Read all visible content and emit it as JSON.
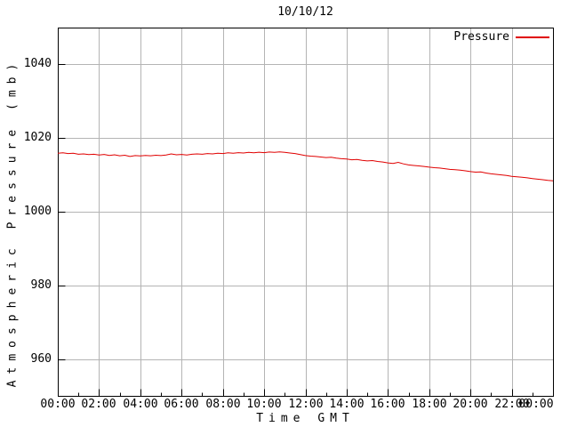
{
  "chart_data": {
    "type": "line",
    "title": "10/10/12",
    "xlabel": "Time GMT",
    "ylabel": "Atmospheric Pressure (mb)",
    "x_unit": "hours",
    "xlim": [
      0,
      24
    ],
    "ylim": [
      950,
      1050
    ],
    "grid": true,
    "x_major_ticks_hours": [
      0,
      2,
      4,
      6,
      8,
      10,
      12,
      14,
      16,
      18,
      20,
      22,
      24
    ],
    "x_tick_labels": [
      "00:00",
      "02:00",
      "04:00",
      "06:00",
      "08:00",
      "10:00",
      "12:00",
      "14:00",
      "16:00",
      "18:00",
      "20:00",
      "22:00",
      "00:00"
    ],
    "x_minor_tick_interval_hours": 1,
    "y_ticks": [
      960,
      980,
      1000,
      1020,
      1040
    ],
    "colors": {
      "background": "#ffffff",
      "axis": "#000000",
      "grid": "#b4b4b4",
      "text": "#000000",
      "line": "#e00000"
    },
    "legend": {
      "position": "top-right",
      "entries": [
        {
          "label": "Pressure",
          "color": "#e00000"
        }
      ]
    },
    "series": [
      {
        "name": "Pressure",
        "color": "#e00000",
        "points": [
          [
            0.0,
            1015.9
          ],
          [
            0.25,
            1016.0
          ],
          [
            0.5,
            1015.8
          ],
          [
            0.75,
            1015.9
          ],
          [
            1.0,
            1015.6
          ],
          [
            1.25,
            1015.7
          ],
          [
            1.5,
            1015.5
          ],
          [
            1.75,
            1015.6
          ],
          [
            2.0,
            1015.4
          ],
          [
            2.25,
            1015.55
          ],
          [
            2.5,
            1015.3
          ],
          [
            2.75,
            1015.45
          ],
          [
            3.0,
            1015.2
          ],
          [
            3.25,
            1015.35
          ],
          [
            3.5,
            1015.0
          ],
          [
            3.75,
            1015.25
          ],
          [
            4.0,
            1015.15
          ],
          [
            4.25,
            1015.3
          ],
          [
            4.5,
            1015.2
          ],
          [
            4.75,
            1015.35
          ],
          [
            5.0,
            1015.25
          ],
          [
            5.25,
            1015.4
          ],
          [
            5.5,
            1015.7
          ],
          [
            5.75,
            1015.45
          ],
          [
            6.0,
            1015.55
          ],
          [
            6.25,
            1015.4
          ],
          [
            6.5,
            1015.6
          ],
          [
            6.75,
            1015.7
          ],
          [
            7.0,
            1015.6
          ],
          [
            7.25,
            1015.8
          ],
          [
            7.5,
            1015.7
          ],
          [
            7.75,
            1015.9
          ],
          [
            8.0,
            1015.8
          ],
          [
            8.25,
            1016.0
          ],
          [
            8.5,
            1015.9
          ],
          [
            8.75,
            1016.05
          ],
          [
            9.0,
            1015.95
          ],
          [
            9.25,
            1016.1
          ],
          [
            9.5,
            1016.0
          ],
          [
            9.75,
            1016.15
          ],
          [
            10.0,
            1016.05
          ],
          [
            10.25,
            1016.2
          ],
          [
            10.5,
            1016.1
          ],
          [
            10.75,
            1016.25
          ],
          [
            11.0,
            1016.1
          ],
          [
            11.25,
            1015.95
          ],
          [
            11.5,
            1015.8
          ],
          [
            11.75,
            1015.5
          ],
          [
            12.0,
            1015.25
          ],
          [
            12.25,
            1015.1
          ],
          [
            12.5,
            1015.0
          ],
          [
            12.75,
            1014.85
          ],
          [
            13.0,
            1014.7
          ],
          [
            13.25,
            1014.8
          ],
          [
            13.5,
            1014.55
          ],
          [
            13.75,
            1014.4
          ],
          [
            14.0,
            1014.3
          ],
          [
            14.25,
            1014.1
          ],
          [
            14.5,
            1014.2
          ],
          [
            14.75,
            1013.95
          ],
          [
            15.0,
            1013.8
          ],
          [
            15.25,
            1013.9
          ],
          [
            15.5,
            1013.65
          ],
          [
            15.75,
            1013.5
          ],
          [
            16.0,
            1013.25
          ],
          [
            16.25,
            1013.1
          ],
          [
            16.5,
            1013.4
          ],
          [
            16.75,
            1013.0
          ],
          [
            17.0,
            1012.7
          ],
          [
            17.25,
            1012.55
          ],
          [
            17.5,
            1012.45
          ],
          [
            17.75,
            1012.3
          ],
          [
            18.0,
            1012.1
          ],
          [
            18.25,
            1011.95
          ],
          [
            18.5,
            1011.85
          ],
          [
            18.75,
            1011.7
          ],
          [
            19.0,
            1011.5
          ],
          [
            19.25,
            1011.4
          ],
          [
            19.5,
            1011.3
          ],
          [
            19.75,
            1011.1
          ],
          [
            20.0,
            1010.9
          ],
          [
            20.25,
            1010.75
          ],
          [
            20.5,
            1010.8
          ],
          [
            20.75,
            1010.5
          ],
          [
            21.0,
            1010.3
          ],
          [
            21.25,
            1010.15
          ],
          [
            21.5,
            1010.0
          ],
          [
            21.75,
            1009.85
          ],
          [
            22.0,
            1009.6
          ],
          [
            22.25,
            1009.5
          ],
          [
            22.5,
            1009.35
          ],
          [
            22.75,
            1009.2
          ],
          [
            23.0,
            1009.0
          ],
          [
            23.25,
            1008.85
          ],
          [
            23.5,
            1008.7
          ],
          [
            23.75,
            1008.5
          ],
          [
            24.0,
            1008.4
          ]
        ]
      }
    ]
  }
}
